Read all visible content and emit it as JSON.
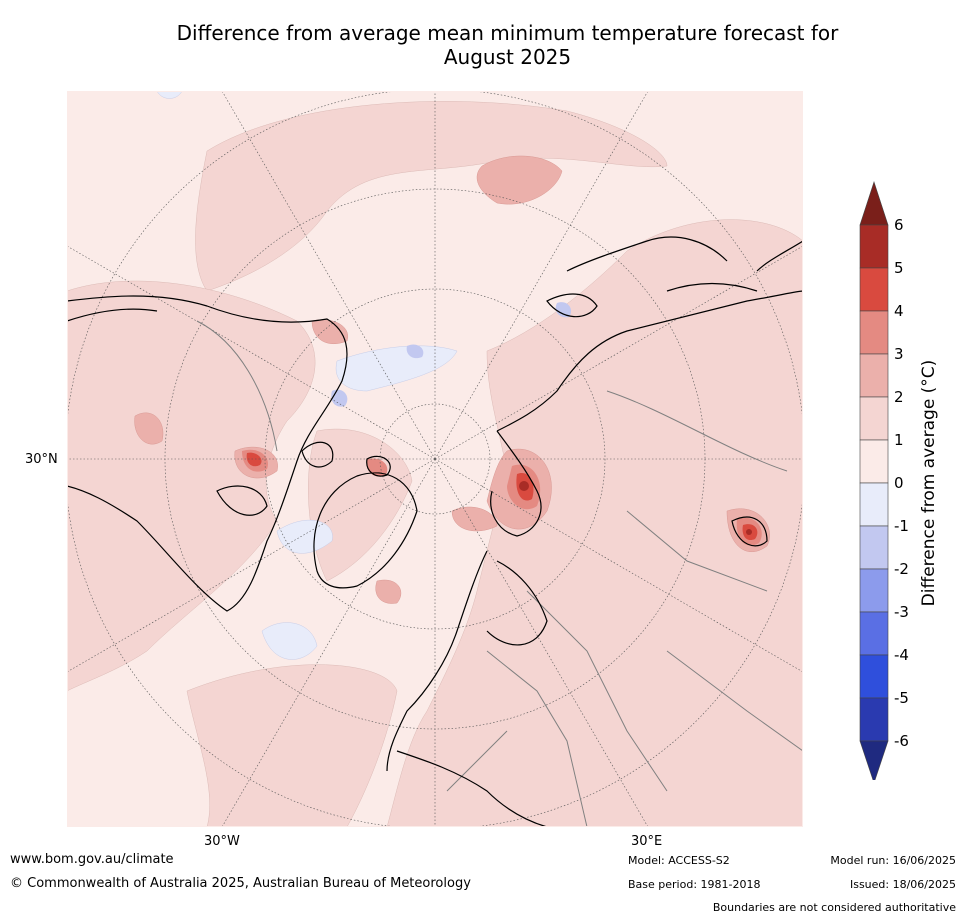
{
  "title_line1": "Difference from average mean minimum temperature forecast for",
  "title_line2": "August 2025",
  "map": {
    "projection": "north-polar-stereographic",
    "lat_label": "30°N",
    "lon_labels": [
      "30°W",
      "30°E"
    ],
    "colors": {
      "ocean_base": "#fbebe8",
      "warm_1_2": "#f4d5d2",
      "warm_2_3": "#ebb0ab",
      "warm_3_4": "#e48a82",
      "warm_4_5": "#d94a3f",
      "warm_5_6": "#a82c26",
      "cool_0_-1": "#e8ecfa",
      "cool_-1_-2": "#c2c8f0",
      "coastline": "#000000",
      "borders": "#808080",
      "gridlines": "#555555"
    }
  },
  "colorbar": {
    "label": "Difference from average (°C)",
    "ticks": [
      "6",
      "5",
      "4",
      "3",
      "2",
      "1",
      "0",
      "-1",
      "-2",
      "-3",
      "-4",
      "-5",
      "-6"
    ],
    "bins": [
      {
        "from": 5,
        "to": 6,
        "color": "#a82c26"
      },
      {
        "from": 4,
        "to": 5,
        "color": "#d94a3f"
      },
      {
        "from": 3,
        "to": 4,
        "color": "#e48a82"
      },
      {
        "from": 2,
        "to": 3,
        "color": "#ebb0ab"
      },
      {
        "from": 1,
        "to": 2,
        "color": "#f4d5d2"
      },
      {
        "from": 0,
        "to": 1,
        "color": "#fbebe8"
      },
      {
        "from": -1,
        "to": 0,
        "color": "#e8ecfa"
      },
      {
        "from": -2,
        "to": -1,
        "color": "#c2c8f0"
      },
      {
        "from": -3,
        "to": -2,
        "color": "#8c9bec"
      },
      {
        "from": -4,
        "to": -3,
        "color": "#5a6fe4"
      },
      {
        "from": -5,
        "to": -4,
        "color": "#2f4fdc"
      },
      {
        "from": -6,
        "to": -5,
        "color": "#2a3ab0"
      }
    ],
    "over_color": "#7a1f1a",
    "under_color": "#1f2a80"
  },
  "footer": {
    "url": "www.bom.gov.au/climate",
    "copyright": "© Commonwealth of Australia 2025, Australian Bureau of Meteorology",
    "model": "Model: ACCESS-S2",
    "base_period": "Base period: 1981-2018",
    "model_run": "Model run: 16/06/2025",
    "issued": "Issued: 18/06/2025",
    "disclaimer": "Boundaries are not considered authoritative"
  }
}
